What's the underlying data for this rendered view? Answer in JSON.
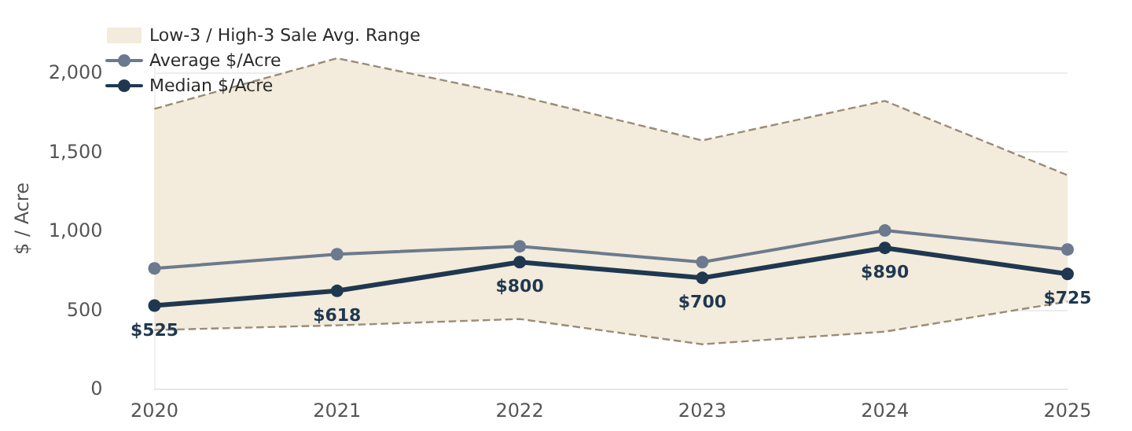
{
  "chart_data": {
    "type": "line",
    "ylabel": "$ / Acre",
    "categories": [
      "2020",
      "2021",
      "2022",
      "2023",
      "2024",
      "2025"
    ],
    "series": [
      {
        "type": "line",
        "color": "#9a8c78",
        "marker": "none",
        "line_style": "dashed",
        "values": [
          370,
          400,
          440,
          280,
          360,
          550
        ]
      },
      {
        "name": "Low-3 / High-3 Sale Avg. Range",
        "type": "area",
        "color": "#f3ebdb",
        "marker": "none",
        "line_style": "dashed",
        "values": [
          1770,
          2090,
          1850,
          1570,
          1820,
          1350
        ]
      },
      {
        "name": "Average $/Acre",
        "color": "#6b7a8e",
        "values": [
          760,
          850,
          900,
          800,
          1000,
          880
        ]
      },
      {
        "name": "Median $/Acre",
        "color": "#1f3850",
        "values": [
          525,
          618,
          800,
          700,
          890,
          725
        ],
        "value_labels": [
          "$525",
          "$618",
          "$800",
          "$700",
          "$890",
          "$725"
        ]
      }
    ],
    "ylim": [
      0,
      2150
    ],
    "yticks": [
      0,
      500,
      {
        "value": 1000,
        "label": "1,000"
      },
      {
        "value": 1500,
        "label": "1,500"
      },
      {
        "value": 2000,
        "label": "2,000"
      }
    ],
    "grid": "y",
    "legend": "top left",
    "marker": "circle"
  }
}
